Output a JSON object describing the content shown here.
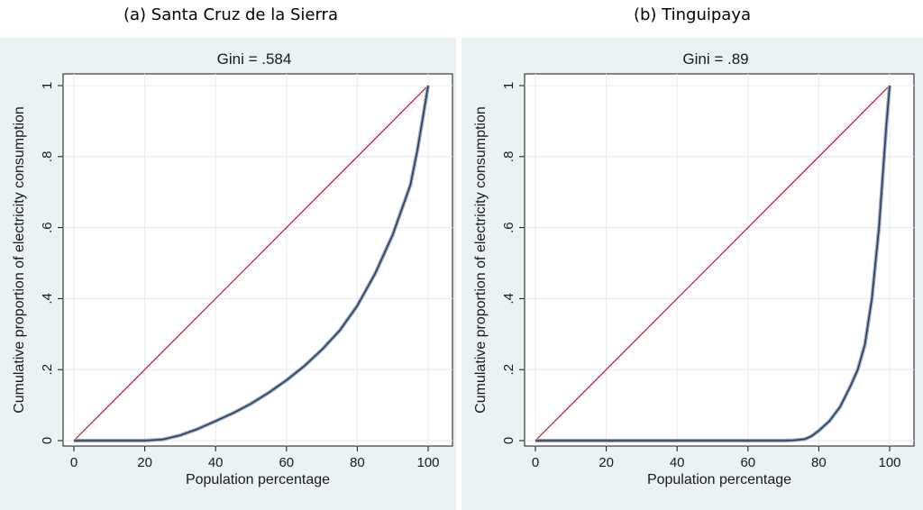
{
  "chart_data": [
    {
      "type": "line",
      "caption": "(a) Santa Cruz de la Sierra",
      "title": "Gini = .584",
      "xlabel": "Population percentage",
      "ylabel": "Cumulative proportion of electricity consumption",
      "xlim": [
        0,
        100
      ],
      "ylim": [
        0,
        1
      ],
      "xticks": [
        0,
        20,
        40,
        60,
        80,
        100
      ],
      "yticks": [
        0,
        0.2,
        0.4,
        0.6,
        0.8,
        1
      ],
      "ytick_labels": [
        "0",
        ".2",
        ".4",
        ".6",
        ".8",
        "1"
      ],
      "grid": true,
      "series": [
        {
          "role": "equality",
          "color": "#c8102e",
          "x": [
            0,
            100
          ],
          "y": [
            0,
            1
          ]
        },
        {
          "role": "lorenz",
          "color": "#1f3f68",
          "x": [
            0,
            10,
            20,
            25,
            30,
            35,
            40,
            45,
            50,
            55,
            60,
            65,
            70,
            75,
            80,
            85,
            90,
            95,
            97,
            99,
            100
          ],
          "y": [
            0,
            0,
            0,
            0.003,
            0.015,
            0.033,
            0.055,
            0.078,
            0.104,
            0.135,
            0.17,
            0.21,
            0.256,
            0.31,
            0.38,
            0.47,
            0.58,
            0.72,
            0.82,
            0.94,
            1
          ]
        }
      ]
    },
    {
      "type": "line",
      "caption": "(b) Tinguipaya",
      "title": "Gini = .89",
      "xlabel": "Population percentage",
      "ylabel": "Cumulative proportion of electricity consumption",
      "xlim": [
        0,
        100
      ],
      "ylim": [
        0,
        1
      ],
      "xticks": [
        0,
        20,
        40,
        60,
        80,
        100
      ],
      "yticks": [
        0,
        0.2,
        0.4,
        0.6,
        0.8,
        1
      ],
      "ytick_labels": [
        "0",
        ".2",
        ".4",
        ".6",
        ".8",
        "1"
      ],
      "grid": true,
      "series": [
        {
          "role": "equality",
          "color": "#c8102e",
          "x": [
            0,
            100
          ],
          "y": [
            0,
            1
          ]
        },
        {
          "role": "lorenz",
          "color": "#1f3f68",
          "x": [
            0,
            20,
            40,
            60,
            70,
            73,
            76,
            78,
            80,
            83,
            86,
            89,
            91,
            93,
            95,
            97,
            99,
            100
          ],
          "y": [
            0,
            0,
            0,
            0,
            0,
            0.001,
            0.004,
            0.013,
            0.028,
            0.055,
            0.095,
            0.155,
            0.2,
            0.27,
            0.4,
            0.6,
            0.88,
            1
          ]
        }
      ]
    }
  ]
}
